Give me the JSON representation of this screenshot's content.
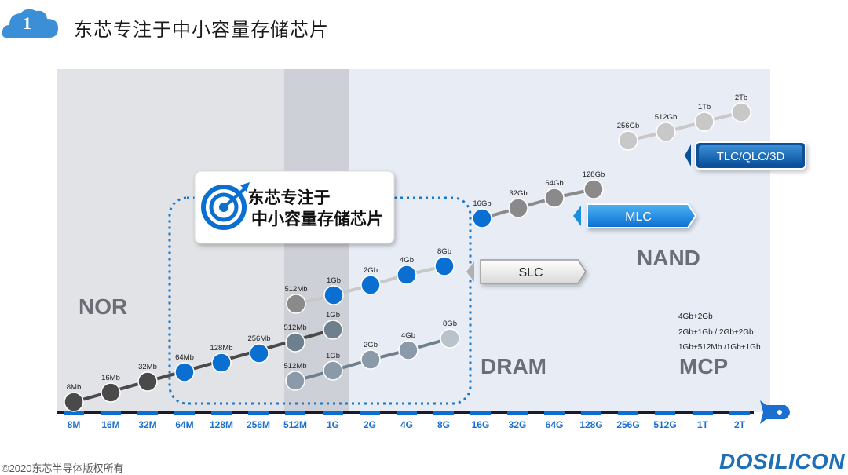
{
  "header": {
    "badge_number": "1",
    "title": "东芯专注于中小容量存储芯片"
  },
  "callout": {
    "line1": "东芯专注于",
    "line2": "中小容量存储芯片"
  },
  "regions": {
    "nor": "NOR",
    "nand": "NAND",
    "dram": "DRAM",
    "mcp": "MCP"
  },
  "chart_data": {
    "type": "line",
    "x_axis_labels": [
      "8M",
      "16M",
      "32M",
      "64M",
      "128M",
      "256M",
      "512M",
      "1G",
      "2G",
      "4G",
      "8G",
      "16G",
      "32G",
      "64G",
      "128G",
      "256G",
      "512G",
      "1T",
      "2T"
    ],
    "series": [
      {
        "name": "NOR",
        "color": "#4a4a4a",
        "point_labels": [
          "8Mb",
          "16Mb",
          "32Mb"
        ]
      },
      {
        "name": "NOR",
        "color": "#0a6fd1",
        "point_labels": [
          "64Mb",
          "128Mb",
          "256Mb"
        ]
      },
      {
        "name": "NOR",
        "color": "#6e7f8e",
        "point_labels": [
          "512Mb",
          "1Gb"
        ]
      },
      {
        "name": "SLC",
        "color": "#0a6fd1",
        "point_labels": [
          "512Mb",
          "1Gb",
          "2Gb",
          "4Gb",
          "8Gb"
        ]
      },
      {
        "name": "DRAM",
        "color": "#8a9aa8",
        "point_labels": [
          "512Mb",
          "1Gb",
          "2Gb",
          "4Gb",
          "8Gb"
        ]
      },
      {
        "name": "MLC",
        "color": "#0a6fd1",
        "point_labels": [
          "16Gb",
          "32Gb",
          "64Gb",
          "128Gb"
        ]
      },
      {
        "name": "TLC/QLC/3D",
        "color": "#c8c8c8",
        "point_labels": [
          "256Gb",
          "512Gb",
          "1Tb",
          "2Tb"
        ]
      }
    ],
    "tags": [
      "TLC/QLC/3D",
      "MLC",
      "SLC"
    ],
    "mcp_lines": [
      "4Gb+2Gb",
      "2Gb+1Gb / 2Gb+2Gb",
      "1Gb+512Mb /1Gb+1Gb"
    ]
  },
  "footer": {
    "copyright": "©2020东芯半导体版权所有",
    "logo": "DOSILICON"
  },
  "colors": {
    "blue": "#0a6fd1",
    "dark_gray": "#4a4a4a",
    "light_gray": "#c8c8c8",
    "axis": "#1a1a2e"
  }
}
